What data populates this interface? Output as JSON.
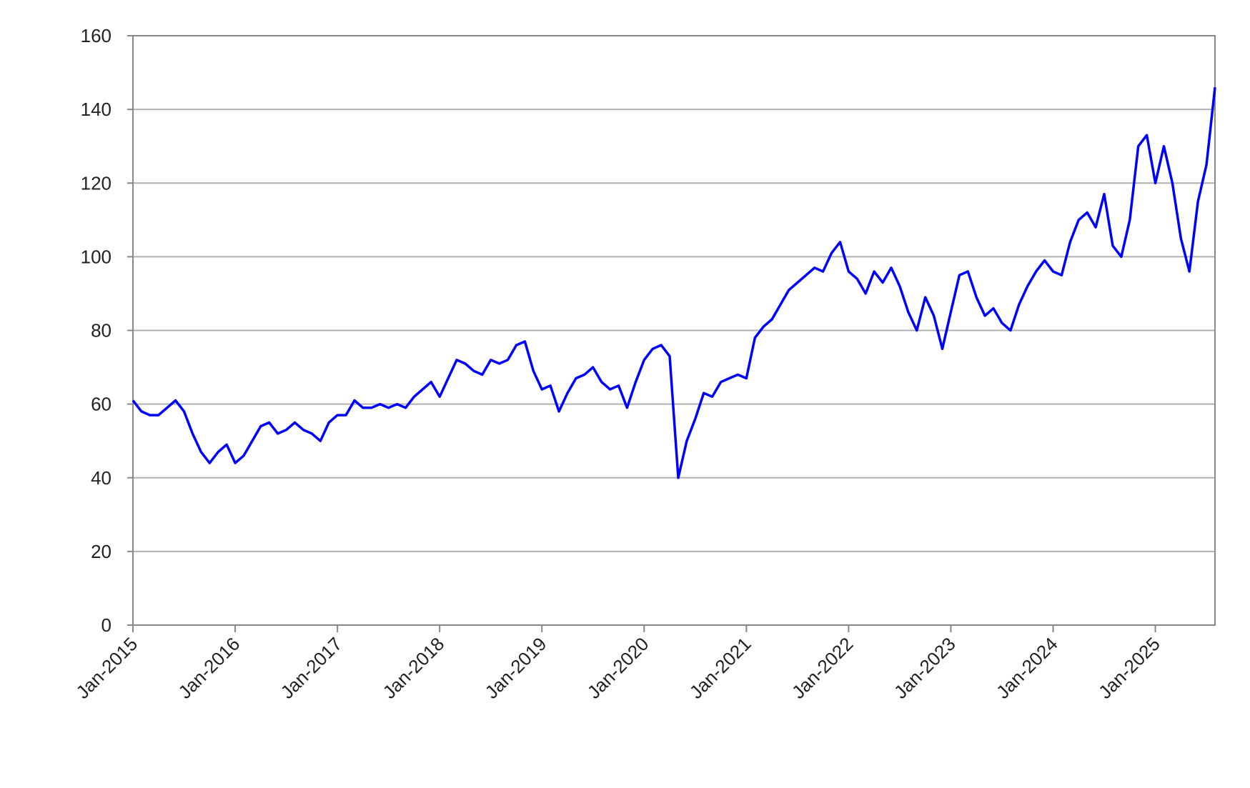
{
  "chart_data": {
    "type": "line",
    "x": [
      "2015-01",
      "2015-02",
      "2015-03",
      "2015-04",
      "2015-05",
      "2015-06",
      "2015-07",
      "2015-08",
      "2015-09",
      "2015-10",
      "2015-11",
      "2015-12",
      "2016-01",
      "2016-02",
      "2016-03",
      "2016-04",
      "2016-05",
      "2016-06",
      "2016-07",
      "2016-08",
      "2016-09",
      "2016-10",
      "2016-11",
      "2016-12",
      "2017-01",
      "2017-02",
      "2017-03",
      "2017-04",
      "2017-05",
      "2017-06",
      "2017-07",
      "2017-08",
      "2017-09",
      "2017-10",
      "2017-11",
      "2017-12",
      "2018-01",
      "2018-02",
      "2018-03",
      "2018-04",
      "2018-05",
      "2018-06",
      "2018-07",
      "2018-08",
      "2018-09",
      "2018-10",
      "2018-11",
      "2018-12",
      "2019-01",
      "2019-02",
      "2019-03",
      "2019-04",
      "2019-05",
      "2019-06",
      "2019-07",
      "2019-08",
      "2019-09",
      "2019-10",
      "2019-11",
      "2019-12",
      "2020-01",
      "2020-02",
      "2020-03",
      "2020-04",
      "2020-05",
      "2020-06",
      "2020-07",
      "2020-08",
      "2020-09",
      "2020-10",
      "2020-11",
      "2020-12",
      "2021-01",
      "2021-02",
      "2021-03",
      "2021-04",
      "2021-05",
      "2021-06",
      "2021-07",
      "2021-08",
      "2021-09",
      "2021-10",
      "2021-11",
      "2021-12",
      "2022-01",
      "2022-02",
      "2022-03",
      "2022-04",
      "2022-05",
      "2022-06",
      "2022-07",
      "2022-08",
      "2022-09",
      "2022-10",
      "2022-11",
      "2022-12",
      "2023-01",
      "2023-02",
      "2023-03",
      "2023-04",
      "2023-05",
      "2023-06",
      "2023-07",
      "2023-08",
      "2023-09",
      "2023-10",
      "2023-11",
      "2023-12",
      "2024-01",
      "2024-02",
      "2024-03",
      "2024-04",
      "2024-05",
      "2024-06",
      "2024-07",
      "2024-08",
      "2024-09",
      "2024-10",
      "2024-11",
      "2024-12",
      "2025-01",
      "2025-02",
      "2025-03",
      "2025-04",
      "2025-05",
      "2025-06",
      "2025-07",
      "2025-08"
    ],
    "series": [
      {
        "color": "#0000ff",
        "values": [
          61,
          58,
          57,
          57,
          59,
          61,
          58,
          52,
          47,
          44,
          47,
          49,
          44,
          46,
          50,
          54,
          55,
          52,
          53,
          55,
          53,
          52,
          50,
          55,
          57,
          57,
          61,
          59,
          59,
          60,
          59,
          60,
          59,
          62,
          64,
          66,
          62,
          67,
          72,
          71,
          69,
          68,
          72,
          71,
          72,
          76,
          77,
          69,
          64,
          65,
          58,
          63,
          67,
          68,
          70,
          66,
          64,
          65,
          59,
          66,
          72,
          75,
          76,
          73,
          40,
          50,
          56,
          63,
          62,
          66,
          67,
          68,
          67,
          78,
          81,
          83,
          87,
          91,
          93,
          95,
          97,
          96,
          101,
          104,
          96,
          94,
          90,
          96,
          93,
          97,
          92,
          85,
          80,
          89,
          84,
          75,
          85,
          95,
          96,
          89,
          84,
          86,
          82,
          80,
          87,
          92,
          96,
          99,
          96,
          95,
          104,
          110,
          112,
          108,
          117,
          103,
          100,
          110,
          130,
          133,
          120,
          130,
          120,
          105,
          96,
          115,
          125,
          146
        ]
      }
    ],
    "xlim": [
      "2015-01",
      "2025-08"
    ],
    "xticks": [
      {
        "value": "2015-01",
        "label": "Jan-2015"
      },
      {
        "value": "2016-01",
        "label": "Jan-2016"
      },
      {
        "value": "2017-01",
        "label": "Jan-2017"
      },
      {
        "value": "2018-01",
        "label": "Jan-2018"
      },
      {
        "value": "2019-01",
        "label": "Jan-2019"
      },
      {
        "value": "2020-01",
        "label": "Jan-2020"
      },
      {
        "value": "2021-01",
        "label": "Jan-2021"
      },
      {
        "value": "2022-01",
        "label": "Jan-2022"
      },
      {
        "value": "2023-01",
        "label": "Jan-2023"
      },
      {
        "value": "2024-01",
        "label": "Jan-2024"
      },
      {
        "value": "2025-01",
        "label": "Jan-2025"
      }
    ],
    "ylim": [
      0,
      160
    ],
    "yticks": [
      0,
      20,
      40,
      60,
      80,
      100,
      120,
      140,
      160
    ],
    "grid": true
  }
}
